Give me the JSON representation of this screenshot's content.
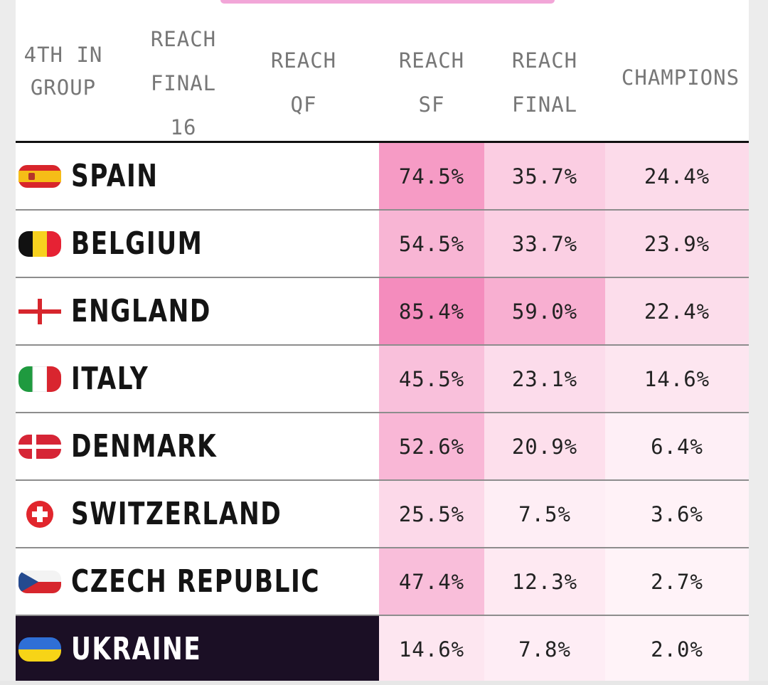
{
  "chart_data": {
    "type": "table",
    "columns": [
      "4TH IN\nGROUP",
      "REACH\nFINAL\n16",
      "REACH\nQF",
      "REACH\nSF",
      "REACH\nFINAL",
      "CHAMPIONS"
    ],
    "rows": [
      {
        "team": "SPAIN",
        "flag": "spain-flag-icon",
        "reach_sf": "74.5%",
        "reach_final": "35.7%",
        "champions": "24.4%"
      },
      {
        "team": "BELGIUM",
        "flag": "belgium-flag-icon",
        "reach_sf": "54.5%",
        "reach_final": "33.7%",
        "champions": "23.9%"
      },
      {
        "team": "ENGLAND",
        "flag": "england-flag-icon",
        "reach_sf": "85.4%",
        "reach_final": "59.0%",
        "champions": "22.4%"
      },
      {
        "team": "ITALY",
        "flag": "italy-flag-icon",
        "reach_sf": "45.5%",
        "reach_final": "23.1%",
        "champions": "14.6%"
      },
      {
        "team": "DENMARK",
        "flag": "denmark-flag-icon",
        "reach_sf": "52.6%",
        "reach_final": "20.9%",
        "champions": "6.4%"
      },
      {
        "team": "SWITZERLAND",
        "flag": "switzerland-flag-icon",
        "reach_sf": "25.5%",
        "reach_final": "7.5%",
        "champions": "3.6%"
      },
      {
        "team": "CZECH REPUBLIC",
        "flag": "czech-flag-icon",
        "reach_sf": "47.4%",
        "reach_final": "12.3%",
        "champions": "2.7%"
      },
      {
        "team": "UKRAINE",
        "flag": "ukraine-flag-icon",
        "reach_sf": "14.6%",
        "reach_final": "7.8%",
        "champions": "2.0%"
      }
    ],
    "highlight_team": "UKRAINE",
    "colors": {
      "heat_high": "#f48cbd",
      "heat_low": "#fff5f9",
      "highlight_bg": "#1b0f25",
      "header_text": "#777777"
    }
  }
}
